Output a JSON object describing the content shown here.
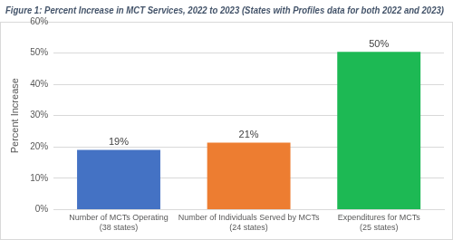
{
  "chart_data": {
    "type": "bar",
    "title": "Figure 1: Percent Increase in MCT Services, 2022 to 2023 (States with Profiles data for both 2022 and 2023)",
    "y_label": "Percent Increase",
    "categories": [
      "Number of MCTs Operating (38 states)",
      "Number of Individuals Served by MCTs (24 states)",
      "Expenditures for MCTs (25 states)"
    ],
    "values": [
      19.1,
      21.4,
      50.4
    ],
    "value_labels": [
      "19%",
      "21%",
      "50%"
    ],
    "colors": [
      "#4472c4",
      "#ed7d31",
      "#1db954"
    ],
    "ylim": [
      0,
      60
    ],
    "yticks": [
      {
        "value": 0,
        "label": "0%"
      },
      {
        "value": 10,
        "label": "10%"
      },
      {
        "value": 20,
        "label": "20%"
      },
      {
        "value": 30,
        "label": "30%"
      },
      {
        "value": 40,
        "label": "40%"
      },
      {
        "value": 50,
        "label": "50%"
      },
      {
        "value": 60,
        "label": "60%"
      }
    ],
    "grid": true,
    "data_labels": true
  }
}
